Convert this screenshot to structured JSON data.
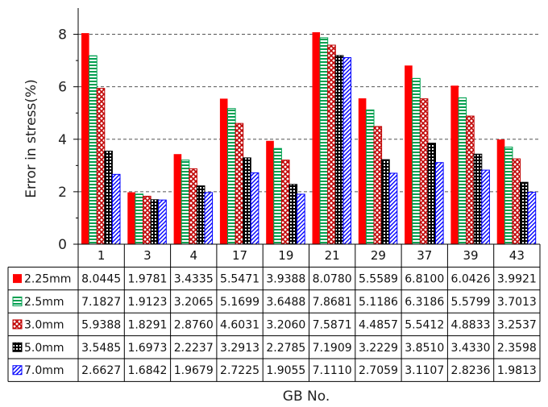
{
  "chart_data": {
    "type": "bar",
    "xlabel": "GB No.",
    "ylabel": "Error in stress(%)",
    "ylim": [
      0,
      9
    ],
    "yticks": [
      0,
      2,
      4,
      6,
      8
    ],
    "grid": "horizontal dashed",
    "legend": "data table below plot",
    "categories": [
      "1",
      "3",
      "4",
      "17",
      "19",
      "21",
      "29",
      "37",
      "39",
      "43"
    ],
    "series": [
      {
        "name": "2.25mm",
        "color": "#ff0000",
        "pattern": "solid",
        "values": [
          8.0445,
          1.9781,
          3.4335,
          5.5471,
          3.9388,
          8.078,
          5.5589,
          6.81,
          6.0426,
          3.9921
        ],
        "labels": [
          "8.0445",
          "1.9781",
          "3.4335",
          "5.5471",
          "3.9388",
          "8.0780",
          "5.5589",
          "6.8100",
          "6.0426",
          "3.9921"
        ]
      },
      {
        "name": "2.5mm",
        "color": "#00a050",
        "pattern": "horizontal",
        "values": [
          7.1827,
          1.9123,
          3.2065,
          5.1699,
          3.6488,
          7.8681,
          5.1186,
          6.3186,
          5.5799,
          3.7013
        ],
        "labels": [
          "7.1827",
          "1.9123",
          "3.2065",
          "5.1699",
          "3.6488",
          "7.8681",
          "5.1186",
          "6.3186",
          "5.5799",
          "3.7013"
        ]
      },
      {
        "name": "3.0mm",
        "color": "#c00000",
        "pattern": "cross",
        "values": [
          5.9388,
          1.8291,
          2.876,
          4.6031,
          3.206,
          7.5871,
          4.4857,
          5.5412,
          4.8833,
          3.2537
        ],
        "labels": [
          "5.9388",
          "1.8291",
          "2.8760",
          "4.6031",
          "3.2060",
          "7.5871",
          "4.4857",
          "5.5412",
          "4.8833",
          "3.2537"
        ]
      },
      {
        "name": "5.0mm",
        "color": "#000000",
        "pattern": "checker",
        "values": [
          3.5485,
          1.6973,
          2.2237,
          3.2913,
          2.2785,
          7.1909,
          3.2229,
          3.851,
          3.433,
          2.3598
        ],
        "labels": [
          "3.5485",
          "1.6973",
          "2.2237",
          "3.2913",
          "2.2785",
          "7.1909",
          "3.2229",
          "3.8510",
          "3.4330",
          "2.3598"
        ]
      },
      {
        "name": "7.0mm",
        "color": "#0000ff",
        "pattern": "diagonal",
        "values": [
          2.6627,
          1.6842,
          1.9679,
          2.7225,
          1.9055,
          7.111,
          2.7059,
          3.1107,
          2.8236,
          1.9813
        ],
        "labels": [
          "2.6627",
          "1.6842",
          "1.9679",
          "2.7225",
          "1.9055",
          "7.1110",
          "2.7059",
          "3.1107",
          "2.8236",
          "1.9813"
        ]
      }
    ]
  }
}
